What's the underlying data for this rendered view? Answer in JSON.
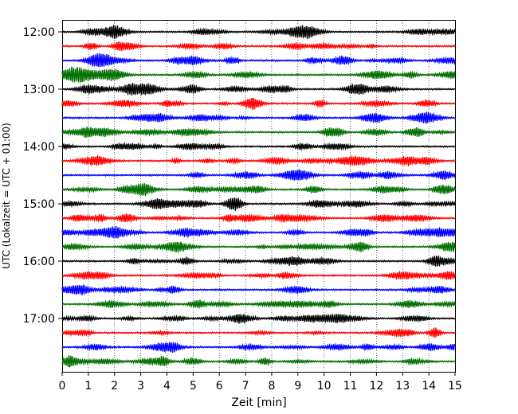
{
  "chart_data": {
    "type": "line",
    "title": "",
    "xlabel": "Zeit  [min]",
    "ylabel": "UTC (Lokalzeit = UTC + 01:00)",
    "xlim": [
      0,
      15
    ],
    "x_ticks": [
      "0",
      "1",
      "2",
      "3",
      "4",
      "5",
      "6",
      "7",
      "8",
      "9",
      "10",
      "11",
      "12",
      "13",
      "14",
      "15"
    ],
    "y_ticks": [
      "12:00",
      "13:00",
      "14:00",
      "15:00",
      "16:00",
      "17:00"
    ],
    "grid": "vertical dotted",
    "trace_interval_min": 15,
    "start_time": "12:00",
    "traces": 24,
    "trace_colors": [
      "#000000",
      "#ff0000",
      "#0000ff",
      "#007000"
    ]
  }
}
